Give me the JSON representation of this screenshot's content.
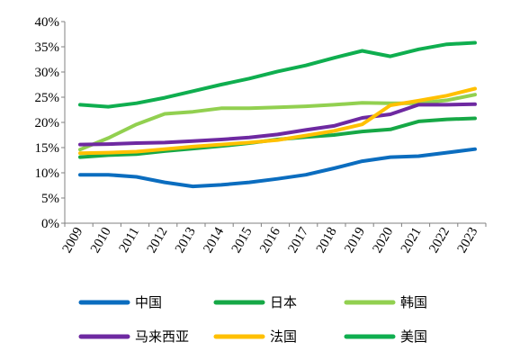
{
  "chart_data": {
    "type": "line",
    "title": "",
    "xlabel": "",
    "ylabel": "",
    "x": [
      "2009",
      "2010",
      "2011",
      "2012",
      "2013",
      "2014",
      "2015",
      "2016",
      "2017",
      "2018",
      "2019",
      "2020",
      "2021",
      "2022",
      "2023"
    ],
    "y_ticks": [
      "0%",
      "5%",
      "10%",
      "15%",
      "20%",
      "25%",
      "30%",
      "35%",
      "40%"
    ],
    "ylim": [
      0,
      40
    ],
    "grid": false,
    "legend_position": "bottom",
    "series": [
      {
        "name": "中国",
        "color": "#0b6dbf",
        "values": [
          9.6,
          9.6,
          9.2,
          8.1,
          7.3,
          7.6,
          8.1,
          8.8,
          9.6,
          10.9,
          12.3,
          13.1,
          13.3,
          14.0,
          14.7
        ]
      },
      {
        "name": "日本",
        "color": "#16a846",
        "values": [
          13.1,
          13.5,
          13.7,
          14.3,
          14.8,
          15.3,
          15.9,
          16.6,
          17.1,
          17.5,
          18.2,
          18.6,
          20.2,
          20.6,
          20.8
        ]
      },
      {
        "name": "韩国",
        "color": "#92d050",
        "values": [
          14.6,
          16.9,
          19.6,
          21.7,
          22.1,
          22.8,
          22.8,
          23.0,
          23.2,
          23.5,
          23.9,
          23.8,
          23.8,
          24.4,
          25.5
        ]
      },
      {
        "name": "马来西亚",
        "color": "#6e29a1",
        "values": [
          15.6,
          15.7,
          15.9,
          16.0,
          16.3,
          16.6,
          17.0,
          17.6,
          18.5,
          19.3,
          20.9,
          21.6,
          23.5,
          23.5,
          23.6
        ]
      },
      {
        "name": "法国",
        "color": "#ffc000",
        "values": [
          13.9,
          14.0,
          14.2,
          14.7,
          15.2,
          15.6,
          16.0,
          16.5,
          17.4,
          18.3,
          19.6,
          23.4,
          24.3,
          25.3,
          26.7
        ]
      },
      {
        "name": "美国",
        "color": "#0fae4f",
        "values": [
          23.5,
          23.1,
          23.8,
          24.9,
          26.2,
          27.5,
          28.7,
          30.1,
          31.3,
          32.8,
          34.2,
          33.1,
          34.5,
          35.5,
          35.8
        ]
      }
    ]
  }
}
